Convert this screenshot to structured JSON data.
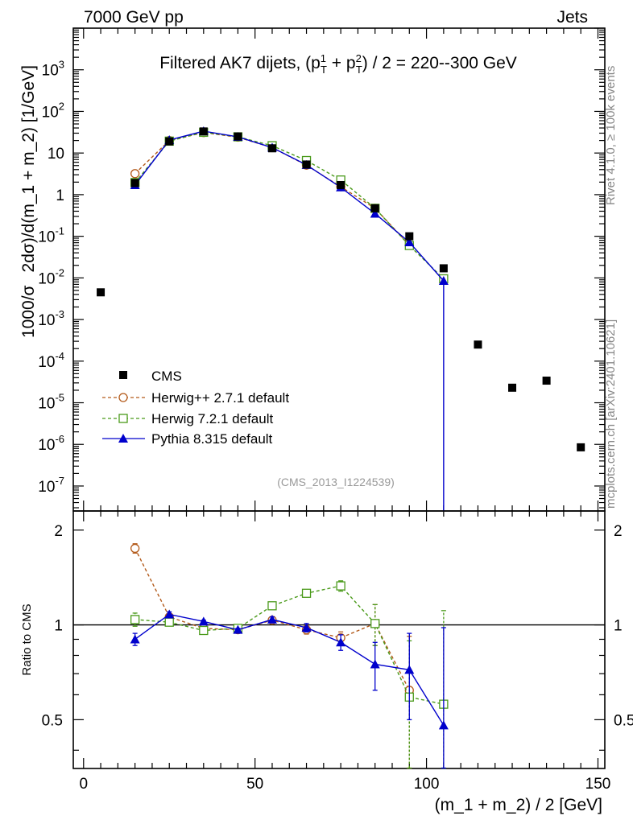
{
  "header": {
    "left": "7000 GeV pp",
    "right": "Jets",
    "side_version": "Rivet 4.1.0, ≥ 100k events",
    "side_site": "mcplots.cern.ch [arXiv:2401.10621]",
    "analysis_tag": "(CMS_2013_I1224539)"
  },
  "chart_data": [
    {
      "type": "scatter",
      "title": "Filtered AK7 dijets, (p_T^1 + p_T^2) / 2 = 220--300 GeV",
      "title_parts": [
        "Filtered AK7 dijets, (p",
        "1",
        "T",
        " + p",
        "2",
        "T",
        ") / 2 = 220--300 GeV"
      ],
      "ylabel_parts": [
        "1000/σ",
        "2dσ)/d(m_1 + m_2) [1/GeV]"
      ],
      "xlim": [
        -3,
        152
      ],
      "ylim_log10": [
        -7.6,
        4.0
      ],
      "yscale": "log",
      "x_ticks": [
        0,
        50,
        100,
        150
      ],
      "y_ticks": [
        {
          "v": 3,
          "label": "10",
          "sup": "3"
        },
        {
          "v": 2,
          "label": "10",
          "sup": "2"
        },
        {
          "v": 1,
          "label": "10",
          "sup": ""
        },
        {
          "v": 0,
          "label": "1",
          "sup": ""
        },
        {
          "v": -1,
          "label": "10",
          "sup": "-1"
        },
        {
          "v": -2,
          "label": "10",
          "sup": "-2"
        },
        {
          "v": -3,
          "label": "10",
          "sup": "-3"
        },
        {
          "v": -4,
          "label": "10",
          "sup": "-4"
        },
        {
          "v": -5,
          "label": "10",
          "sup": "-5"
        },
        {
          "v": -6,
          "label": "10",
          "sup": "-6"
        },
        {
          "v": -7,
          "label": "10",
          "sup": "-7"
        }
      ],
      "legend_position": "bottom-left",
      "series": [
        {
          "name": "CMS",
          "style": "data",
          "color": "#000000",
          "x": [
            5,
            15,
            25,
            35,
            45,
            55,
            65,
            75,
            85,
            95,
            105,
            115,
            125,
            135,
            145
          ],
          "y": [
            0.0045,
            1.9,
            19,
            33,
            25,
            13,
            5.3,
            1.7,
            0.47,
            0.1,
            0.017,
            0.00025,
            2.3e-05,
            3.4e-05,
            8.5e-07
          ]
        },
        {
          "name": "Herwig++ 2.7.1 default",
          "style": "dash-circle",
          "color": "#b35a1a",
          "x": [
            15,
            25,
            35,
            45,
            55,
            65,
            75,
            85,
            95
          ],
          "y": [
            3.2,
            20,
            31,
            24,
            13.5,
            5.1,
            1.55,
            0.47,
            0.062
          ]
        },
        {
          "name": "Herwig 7.2.1 default",
          "style": "dash-square",
          "color": "#4a9a1a",
          "x": [
            15,
            25,
            35,
            45,
            55,
            65,
            75,
            85,
            95,
            105
          ],
          "y": [
            1.95,
            19.3,
            31.5,
            24.5,
            15,
            6.6,
            2.25,
            0.47,
            0.06,
            0.0095
          ]
        },
        {
          "name": "Pythia 8.315 default",
          "style": "solid-triangle",
          "color": "#0000cc",
          "x": [
            15,
            25,
            35,
            45,
            55,
            65,
            75,
            85,
            95,
            105
          ],
          "y": [
            1.7,
            20.5,
            33.5,
            24.5,
            13.5,
            5.2,
            1.5,
            0.35,
            0.072,
            0.0085
          ]
        }
      ]
    },
    {
      "type": "scatter",
      "title": "",
      "ylabel": "Ratio to CMS",
      "xlabel": "(m_1 + m_2) / 2 [GeV]",
      "xlim": [
        -3,
        152
      ],
      "ylim": [
        0.35,
        2.3
      ],
      "x_ticks": [
        0,
        50,
        100,
        150
      ],
      "y_ticks": [
        0.5,
        1,
        2
      ],
      "reference_line": 1,
      "series": [
        {
          "name": "Herwig++ 2.7.1 default",
          "style": "dash-circle",
          "color": "#b35a1a",
          "x": [
            15,
            25,
            35,
            45,
            55,
            65,
            75,
            85,
            95
          ],
          "y": [
            1.75,
            1.06,
            0.975,
            0.965,
            1.035,
            0.965,
            0.91,
            1.01,
            0.62
          ],
          "err": [
            0.06,
            0.02,
            0.01,
            0.01,
            0.015,
            0.03,
            0.04,
            0.15,
            0.3
          ]
        },
        {
          "name": "Herwig 7.2.1 default",
          "style": "dash-square",
          "color": "#4a9a1a",
          "x": [
            15,
            25,
            35,
            45,
            55,
            65,
            75,
            85,
            95,
            105
          ],
          "y": [
            1.04,
            1.02,
            0.96,
            0.975,
            1.15,
            1.26,
            1.33,
            1.01,
            0.59,
            0.56
          ],
          "err": [
            0.05,
            0.02,
            0.01,
            0.01,
            0.02,
            0.03,
            0.05,
            0.15,
            0.3,
            0.55
          ]
        },
        {
          "name": "Pythia 8.315 default",
          "style": "solid-triangle",
          "color": "#0000cc",
          "x": [
            15,
            25,
            35,
            45,
            55,
            65,
            75,
            85,
            95,
            105
          ],
          "y": [
            0.9,
            1.08,
            1.025,
            0.965,
            1.04,
            0.98,
            0.88,
            0.75,
            0.72,
            0.48
          ],
          "err": [
            0.04,
            0.02,
            0.01,
            0.01,
            0.02,
            0.03,
            0.05,
            0.13,
            0.22,
            0.5
          ]
        }
      ]
    }
  ]
}
